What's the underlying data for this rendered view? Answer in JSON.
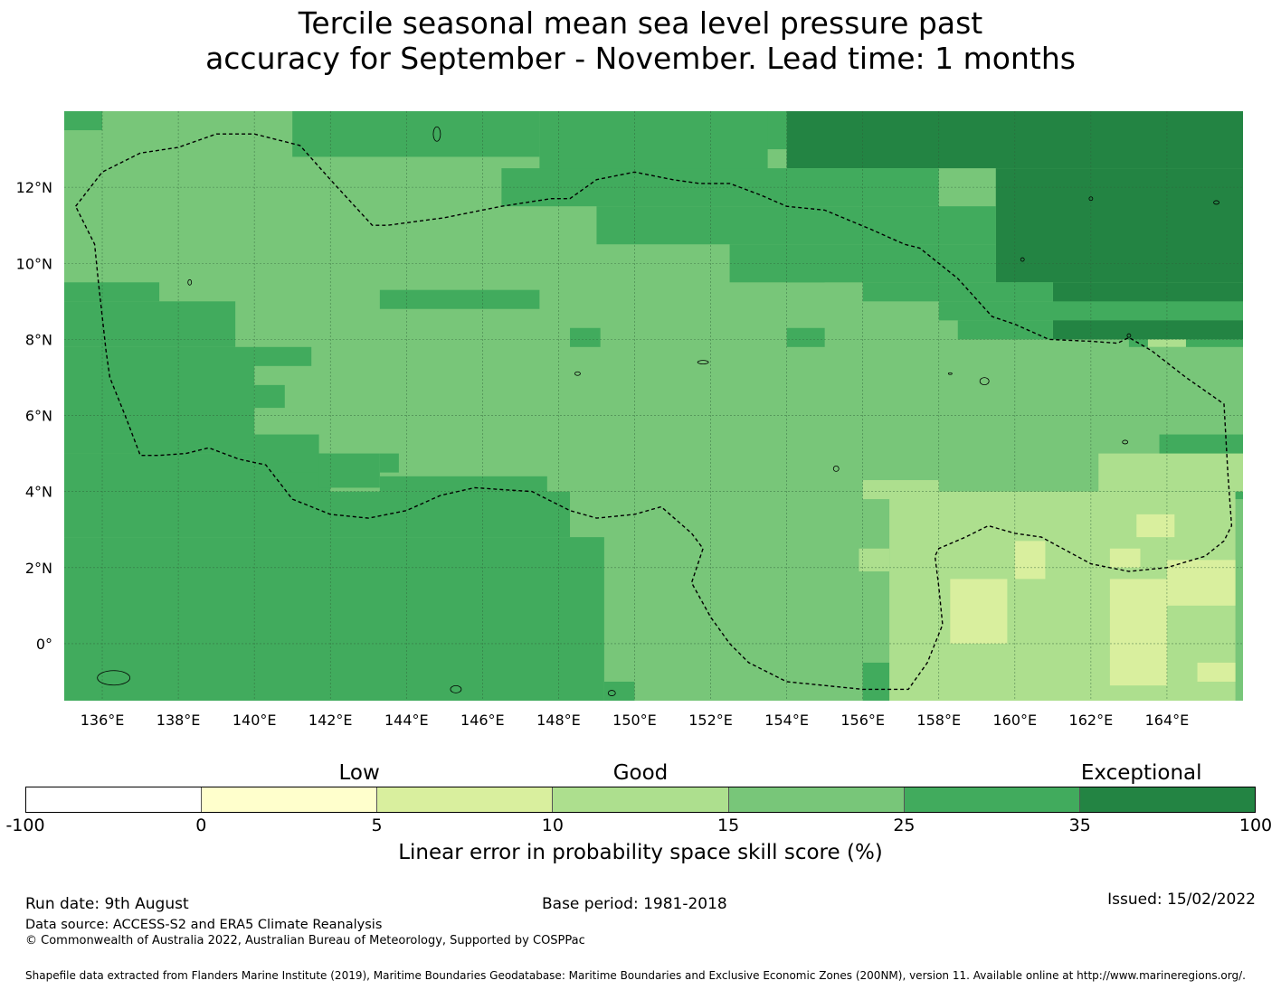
{
  "title": {
    "line1": "Tercile seasonal mean sea level pressure past",
    "line2": "accuracy for September - November. Lead time: 1 months"
  },
  "map": {
    "lat_labels": [
      "12°N",
      "10°N",
      "8°N",
      "6°N",
      "4°N",
      "2°N",
      "0°"
    ],
    "lon_labels": [
      "136°E",
      "138°E",
      "140°E",
      "142°E",
      "144°E",
      "146°E",
      "148°E",
      "150°E",
      "152°E",
      "154°E",
      "156°E",
      "158°E",
      "160°E",
      "162°E",
      "164°E"
    ],
    "extent": {
      "lon_min": 135,
      "lon_max": 166,
      "lat_min": -1.5,
      "lat_max": 14
    },
    "background_class": "15-25",
    "class_colors": {
      "5-10": "#d9ef9e",
      "10-15": "#addf8e",
      "15-25": "#78c679",
      "25-35": "#41ab5d",
      "35-100": "#238443"
    },
    "skill_regions": [
      {
        "class": "35-100",
        "lon": [
          154,
          166
        ],
        "lat": [
          12.5,
          14
        ]
      },
      {
        "class": "35-100",
        "lon": [
          159.5,
          166
        ],
        "lat": [
          9.5,
          12.5
        ]
      },
      {
        "class": "35-100",
        "lon": [
          161,
          166
        ],
        "lat": [
          8,
          9.5
        ]
      },
      {
        "class": "25-35",
        "lon": [
          152.5,
          154
        ],
        "lat": [
          13,
          14
        ]
      },
      {
        "class": "25-35",
        "lon": [
          147.5,
          153.5
        ],
        "lat": [
          12,
          14
        ]
      },
      {
        "class": "25-35",
        "lon": [
          141,
          147.5
        ],
        "lat": [
          12.8,
          14
        ]
      },
      {
        "class": "25-35",
        "lon": [
          146.5,
          158
        ],
        "lat": [
          11.5,
          12.5
        ]
      },
      {
        "class": "25-35",
        "lon": [
          149,
          159.5
        ],
        "lat": [
          10.5,
          11.5
        ]
      },
      {
        "class": "25-35",
        "lon": [
          152.5,
          159.5
        ],
        "lat": [
          9.5,
          10.5
        ]
      },
      {
        "class": "25-35",
        "lon": [
          156,
          161
        ],
        "lat": [
          9,
          9.5
        ]
      },
      {
        "class": "25-35",
        "lon": [
          158,
          166
        ],
        "lat": [
          8.5,
          9
        ]
      },
      {
        "class": "25-35",
        "lon": [
          158.5,
          161
        ],
        "lat": [
          8,
          8.5
        ]
      },
      {
        "class": "25-35",
        "lon": [
          163,
          166
        ],
        "lat": [
          7.8,
          8
        ]
      },
      {
        "class": "25-35",
        "lon": [
          154,
          155
        ],
        "lat": [
          9.5,
          10
        ]
      },
      {
        "class": "25-35",
        "lon": [
          154,
          155
        ],
        "lat": [
          7.8,
          8.3
        ]
      },
      {
        "class": "25-35",
        "lon": [
          135,
          136
        ],
        "lat": [
          13.5,
          14
        ]
      },
      {
        "class": "25-35",
        "lon": [
          135,
          137.5
        ],
        "lat": [
          9,
          9.5
        ]
      },
      {
        "class": "25-35",
        "lon": [
          135,
          139.5
        ],
        "lat": [
          7.8,
          9
        ]
      },
      {
        "class": "25-35",
        "lon": [
          135,
          140
        ],
        "lat": [
          5,
          7.8
        ]
      },
      {
        "class": "25-35",
        "lon": [
          135,
          142
        ],
        "lat": [
          3.8,
          5
        ]
      },
      {
        "class": "25-35",
        "lon": [
          140,
          141.5
        ],
        "lat": [
          7.3,
          7.8
        ]
      },
      {
        "class": "25-35",
        "lon": [
          140,
          140.8
        ],
        "lat": [
          6.2,
          6.8
        ]
      },
      {
        "class": "25-35",
        "lon": [
          140,
          141.7
        ],
        "lat": [
          4.5,
          5.5
        ]
      },
      {
        "class": "25-35",
        "lon": [
          141.7,
          143.3
        ],
        "lat": [
          4.1,
          5
        ]
      },
      {
        "class": "25-35",
        "lon": [
          143.3,
          143.8
        ],
        "lat": [
          4.5,
          5
        ]
      },
      {
        "class": "25-35",
        "lon": [
          143.3,
          147.7
        ],
        "lat": [
          4,
          4.4
        ]
      },
      {
        "class": "25-35",
        "lon": [
          135,
          148.3
        ],
        "lat": [
          2.8,
          4
        ]
      },
      {
        "class": "25-35",
        "lon": [
          135,
          149.2
        ],
        "lat": [
          -1.5,
          2.8
        ]
      },
      {
        "class": "25-35",
        "lon": [
          149.2,
          150
        ],
        "lat": [
          -1.5,
          -1
        ]
      },
      {
        "class": "25-35",
        "lon": [
          143.3,
          147.5
        ],
        "lat": [
          8.8,
          9.3
        ]
      },
      {
        "class": "25-35",
        "lon": [
          148.3,
          149.1
        ],
        "lat": [
          7.8,
          8.3
        ]
      },
      {
        "class": "25-35",
        "lon": [
          163.8,
          166
        ],
        "lat": [
          3.8,
          5.5
        ]
      },
      {
        "class": "25-35",
        "lon": [
          156,
          158
        ],
        "lat": [
          -1.5,
          -0.5
        ]
      },
      {
        "class": "10-15",
        "lon": [
          156.7,
          165.8
        ],
        "lat": [
          -1.5,
          4
        ]
      },
      {
        "class": "10-15",
        "lon": [
          156,
          158
        ],
        "lat": [
          3.8,
          4.3
        ]
      },
      {
        "class": "10-15",
        "lon": [
          162.2,
          166
        ],
        "lat": [
          4,
          5
        ]
      },
      {
        "class": "10-15",
        "lon": [
          155.9,
          156.7
        ],
        "lat": [
          1.9,
          2.5
        ]
      },
      {
        "class": "10-15",
        "lon": [
          163.5,
          164.5
        ],
        "lat": [
          7.8,
          8
        ]
      },
      {
        "class": "5-10",
        "lon": [
          158.3,
          159.8
        ],
        "lat": [
          0,
          1.7
        ]
      },
      {
        "class": "5-10",
        "lon": [
          160,
          160.8
        ],
        "lat": [
          1.7,
          2.7
        ]
      },
      {
        "class": "5-10",
        "lon": [
          162.5,
          164
        ],
        "lat": [
          -1.1,
          1.7
        ]
      },
      {
        "class": "5-10",
        "lon": [
          162.5,
          163.3
        ],
        "lat": [
          2,
          2.5
        ]
      },
      {
        "class": "5-10",
        "lon": [
          164,
          165.8
        ],
        "lat": [
          1,
          2.2
        ]
      },
      {
        "class": "5-10",
        "lon": [
          164.8,
          165.8
        ],
        "lat": [
          -1,
          -0.5
        ]
      },
      {
        "class": "5-10",
        "lon": [
          163.2,
          164.2
        ],
        "lat": [
          2.8,
          3.4
        ]
      }
    ],
    "eez_outline_lonlat": [
      [
        135.3,
        11.5
      ],
      [
        136,
        12.4
      ],
      [
        137,
        12.9
      ],
      [
        138,
        13.05
      ],
      [
        139,
        13.4
      ],
      [
        140,
        13.4
      ],
      [
        141.2,
        13.1
      ],
      [
        142,
        12.2
      ],
      [
        143.1,
        11
      ],
      [
        143.5,
        11
      ],
      [
        145,
        11.2
      ],
      [
        146.5,
        11.5
      ],
      [
        147.8,
        11.7
      ],
      [
        148.3,
        11.7
      ],
      [
        149,
        12.2
      ],
      [
        150,
        12.4
      ],
      [
        151,
        12.2
      ],
      [
        151.7,
        12.1
      ],
      [
        152.5,
        12.1
      ],
      [
        153.3,
        11.8
      ],
      [
        154,
        11.5
      ],
      [
        155,
        11.4
      ],
      [
        156.2,
        10.9
      ],
      [
        157.1,
        10.5
      ],
      [
        157.5,
        10.4
      ],
      [
        158.5,
        9.6
      ],
      [
        159.4,
        8.6
      ],
      [
        160,
        8.4
      ],
      [
        160.9,
        8
      ],
      [
        162,
        7.95
      ],
      [
        162.7,
        7.9
      ],
      [
        163,
        8.05
      ],
      [
        163.6,
        7.7
      ],
      [
        164.5,
        7
      ],
      [
        165.5,
        6.3
      ],
      [
        165.6,
        4.5
      ],
      [
        165.7,
        3.1
      ],
      [
        165.5,
        2.7
      ],
      [
        165,
        2.3
      ],
      [
        164,
        2
      ],
      [
        163,
        1.9
      ],
      [
        162,
        2.1
      ],
      [
        160.7,
        2.8
      ],
      [
        160,
        2.9
      ],
      [
        159.3,
        3.1
      ],
      [
        158.7,
        2.8
      ],
      [
        158,
        2.5
      ],
      [
        157.9,
        2.3
      ],
      [
        158,
        1.5
      ],
      [
        158.1,
        0.5
      ],
      [
        157.7,
        -0.5
      ],
      [
        157.2,
        -1.2
      ],
      [
        156,
        -1.2
      ],
      [
        155,
        -1.1
      ],
      [
        154,
        -1
      ],
      [
        153,
        -0.5
      ],
      [
        152.5,
        0
      ],
      [
        152,
        0.7
      ],
      [
        151.5,
        1.6
      ],
      [
        151.8,
        2.5
      ],
      [
        151.5,
        2.9
      ],
      [
        150.7,
        3.6
      ],
      [
        150,
        3.4
      ],
      [
        149,
        3.3
      ],
      [
        148.3,
        3.5
      ],
      [
        147.7,
        3.8
      ],
      [
        147.3,
        4
      ],
      [
        146.5,
        4.05
      ],
      [
        145.8,
        4.1
      ],
      [
        144.9,
        3.9
      ],
      [
        144,
        3.5
      ],
      [
        143,
        3.3
      ],
      [
        142,
        3.4
      ],
      [
        141,
        3.8
      ],
      [
        140.3,
        4.7
      ],
      [
        139.6,
        4.85
      ],
      [
        138.8,
        5.15
      ],
      [
        138.2,
        5
      ],
      [
        137.5,
        4.95
      ],
      [
        137,
        4.95
      ],
      [
        136.6,
        6
      ],
      [
        136.2,
        7
      ],
      [
        136.1,
        7.7
      ],
      [
        136,
        8.6
      ],
      [
        135.9,
        9.5
      ],
      [
        135.8,
        10.5
      ],
      [
        135.3,
        11.5
      ]
    ]
  },
  "colorbar": {
    "categories": [
      {
        "label": "Low",
        "value": 0
      },
      {
        "label": "Good",
        "value": 15
      },
      {
        "label": "Exceptional",
        "value": 35
      }
    ],
    "colors": [
      "#ffffff",
      "#ffffcc",
      "#d9ef9e",
      "#addf8e",
      "#78c679",
      "#41ab5d",
      "#238443"
    ],
    "ticks": [
      "-100",
      "0",
      "5",
      "10",
      "15",
      "25",
      "35",
      "100"
    ],
    "label": "Linear error in probability space skill score (%)"
  },
  "footer": {
    "run_date": "Run date: 9th August",
    "base_period": "Base period: 1981-2018",
    "issued": "Issued: 15/02/2022",
    "data_source": "Data source: ACCESS-S2 and ERA5 Climate Reanalysis",
    "copyright": "© Commonwealth of Australia 2022, Australian Bureau of Meteorology, Supported by COSPPac",
    "shapefile": "Shapefile data extracted from Flanders Marine Institute (2019), Maritime Boundaries Geodatabase: Maritime Boundaries and Exclusive Economic Zones (200NM), version 11. Available online at http://www.marineregions.org/."
  }
}
